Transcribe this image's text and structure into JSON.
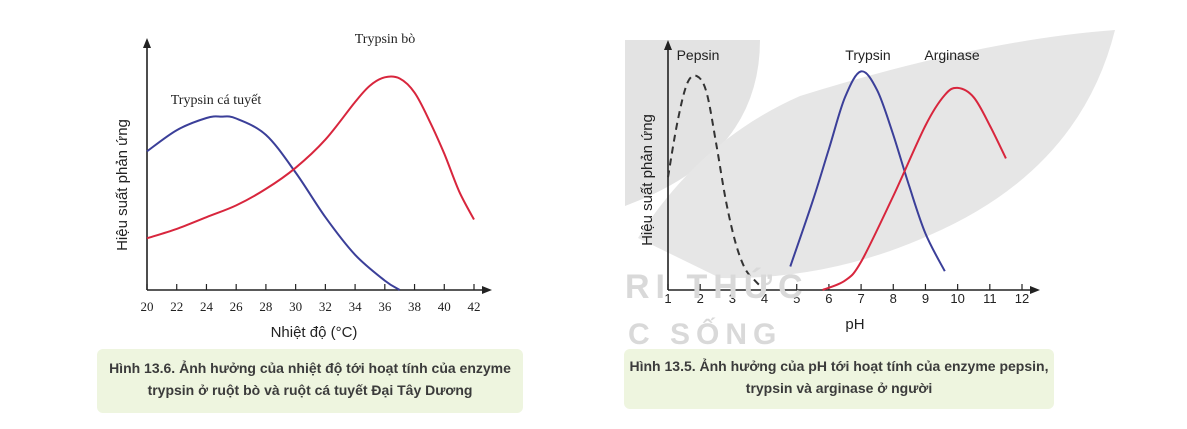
{
  "watermark": {
    "line1": "RI THỨC",
    "line2": "C SỐNG"
  },
  "chart_data": [
    {
      "type": "line",
      "title": "",
      "xlabel": "Nhiệt độ (°C)",
      "ylabel": "Hiệu suất phản ứng",
      "xlim": [
        20,
        42
      ],
      "ylim": [
        0,
        1
      ],
      "xticks": [
        20,
        22,
        24,
        26,
        28,
        30,
        32,
        34,
        36,
        38,
        40,
        42
      ],
      "series": [
        {
          "name": "Trypsin cá tuyết",
          "color": "#3b3f99",
          "points": [
            [
              20,
              0.59
            ],
            [
              22,
              0.68
            ],
            [
              24,
              0.732
            ],
            [
              25,
              0.738
            ],
            [
              26,
              0.73
            ],
            [
              28,
              0.66
            ],
            [
              30,
              0.5
            ],
            [
              32,
              0.31
            ],
            [
              34,
              0.15
            ],
            [
              36,
              0.04
            ],
            [
              37,
              0.0
            ]
          ]
        },
        {
          "name": "Trypsin bò",
          "color": "#d8263d",
          "points": [
            [
              20,
              0.22
            ],
            [
              22,
              0.26
            ],
            [
              24,
              0.31
            ],
            [
              26,
              0.36
            ],
            [
              28,
              0.43
            ],
            [
              30,
              0.52
            ],
            [
              32,
              0.64
            ],
            [
              34,
              0.8
            ],
            [
              35,
              0.87
            ],
            [
              36,
              0.905
            ],
            [
              37,
              0.9
            ],
            [
              38,
              0.84
            ],
            [
              39,
              0.72
            ],
            [
              40,
              0.58
            ],
            [
              41,
              0.42
            ],
            [
              42,
              0.3
            ]
          ]
        }
      ],
      "caption": [
        "Hình 13.6. Ảnh hưởng của nhiệt độ tới hoạt tính của enzyme",
        "trypsin ở ruột bò và ruột cá tuyết Đại Tây Dương"
      ]
    },
    {
      "type": "line",
      "title": "",
      "xlabel": "pH",
      "ylabel": "Hiệu suất phản ứng",
      "xlim": [
        1,
        12
      ],
      "ylim": [
        0,
        1
      ],
      "xticks": [
        1,
        2,
        3,
        4,
        5,
        6,
        7,
        8,
        9,
        10,
        11,
        12
      ],
      "series": [
        {
          "name": "Pepsin",
          "color": "#333333",
          "dashed": true,
          "points": [
            [
              1,
              0.48
            ],
            [
              1.3,
              0.72
            ],
            [
              1.6,
              0.88
            ],
            [
              1.9,
              0.91
            ],
            [
              2.2,
              0.84
            ],
            [
              2.5,
              0.62
            ],
            [
              2.8,
              0.38
            ],
            [
              3.1,
              0.2
            ],
            [
              3.4,
              0.09
            ],
            [
              3.7,
              0.04
            ],
            [
              4,
              0.0
            ]
          ]
        },
        {
          "name": "Trypsin",
          "color": "#3b3f99",
          "points": [
            [
              4.8,
              0.1
            ],
            [
              5.5,
              0.38
            ],
            [
              6,
              0.6
            ],
            [
              6.5,
              0.82
            ],
            [
              7,
              0.93
            ],
            [
              7.5,
              0.85
            ],
            [
              8,
              0.66
            ],
            [
              8.5,
              0.44
            ],
            [
              9,
              0.24
            ],
            [
              9.6,
              0.08
            ]
          ]
        },
        {
          "name": "Arginase",
          "color": "#d8263d",
          "points": [
            [
              5.8,
              0.0
            ],
            [
              6.5,
              0.04
            ],
            [
              7,
              0.12
            ],
            [
              8,
              0.4
            ],
            [
              9,
              0.7
            ],
            [
              9.6,
              0.83
            ],
            [
              10,
              0.86
            ],
            [
              10.5,
              0.82
            ],
            [
              11,
              0.7
            ],
            [
              11.5,
              0.56
            ]
          ]
        }
      ],
      "caption": [
        "Hình 13.5. Ảnh hưởng của pH tới hoạt tính của enzyme pepsin,",
        "trypsin và arginase ở người"
      ]
    }
  ]
}
